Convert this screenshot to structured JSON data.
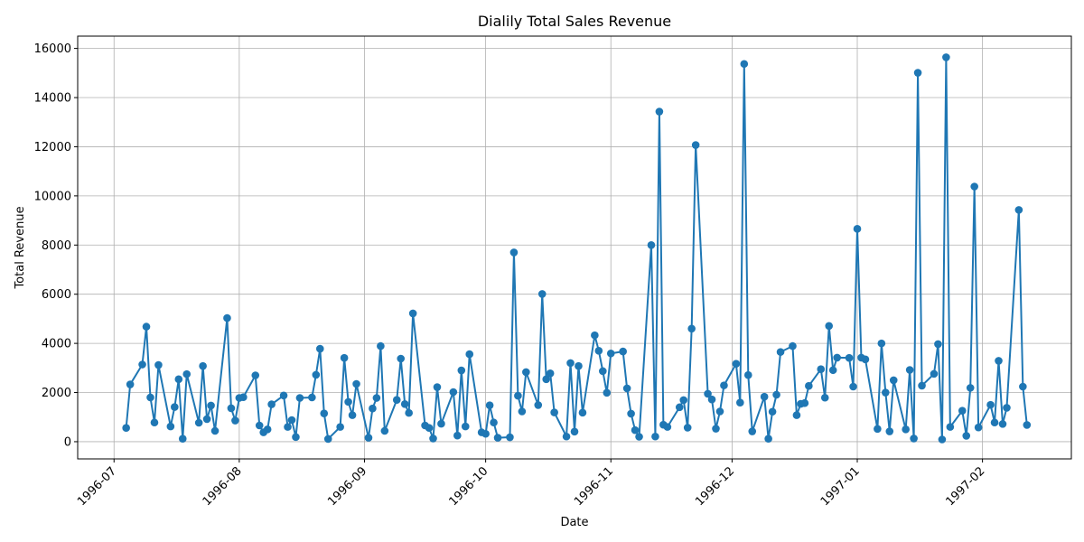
{
  "chart_data": {
    "type": "line",
    "title": "Dialily Total Sales Revenue",
    "xlabel": "Date",
    "ylabel": "Total Revenue",
    "grid": true,
    "marker": "circle",
    "line_color": "#1f77b4",
    "x_ticks": [
      "1996-07",
      "1996-08",
      "1996-09",
      "1996-10",
      "1996-11",
      "1996-12",
      "1997-01",
      "1997-02"
    ],
    "y_ticks": [
      0,
      2000,
      4000,
      6000,
      8000,
      10000,
      12000,
      14000,
      16000
    ],
    "xlim": [
      "1996-06-22",
      "1997-02-23"
    ],
    "ylim": [
      -700,
      16500
    ],
    "series": [
      {
        "x": [
          "1996-07-04",
          "1996-07-05",
          "1996-07-08",
          "1996-07-09",
          "1996-07-10",
          "1996-07-11",
          "1996-07-12",
          "1996-07-15",
          "1996-07-16",
          "1996-07-17",
          "1996-07-18",
          "1996-07-19",
          "1996-07-22",
          "1996-07-23",
          "1996-07-24",
          "1996-07-25",
          "1996-07-26",
          "1996-07-29",
          "1996-07-30",
          "1996-07-31",
          "1996-08-01",
          "1996-08-02",
          "1996-08-05",
          "1996-08-06",
          "1996-08-07",
          "1996-08-08",
          "1996-08-09",
          "1996-08-12",
          "1996-08-13",
          "1996-08-14",
          "1996-08-15",
          "1996-08-16",
          "1996-08-19",
          "1996-08-20",
          "1996-08-21",
          "1996-08-22",
          "1996-08-23",
          "1996-08-26",
          "1996-08-27",
          "1996-08-28",
          "1996-08-29",
          "1996-08-30",
          "1996-09-02",
          "1996-09-03",
          "1996-09-04",
          "1996-09-05",
          "1996-09-06",
          "1996-09-09",
          "1996-09-10",
          "1996-09-11",
          "1996-09-12",
          "1996-09-13",
          "1996-09-16",
          "1996-09-17",
          "1996-09-18",
          "1996-09-19",
          "1996-09-20",
          "1996-09-23",
          "1996-09-24",
          "1996-09-25",
          "1996-09-26",
          "1996-09-27",
          "1996-09-30",
          "1996-10-01",
          "1996-10-02",
          "1996-10-03",
          "1996-10-04",
          "1996-10-07",
          "1996-10-08",
          "1996-10-09",
          "1996-10-10",
          "1996-10-11",
          "1996-10-14",
          "1996-10-15",
          "1996-10-16",
          "1996-10-17",
          "1996-10-18",
          "1996-10-21",
          "1996-10-22",
          "1996-10-23",
          "1996-10-24",
          "1996-10-25",
          "1996-10-28",
          "1996-10-29",
          "1996-10-30",
          "1996-10-31",
          "1996-11-01",
          "1996-11-04",
          "1996-11-05",
          "1996-11-06",
          "1996-11-07",
          "1996-11-08",
          "1996-11-11",
          "1996-11-12",
          "1996-11-13",
          "1996-11-14",
          "1996-11-15",
          "1996-11-18",
          "1996-11-19",
          "1996-11-20",
          "1996-11-21",
          "1996-11-22",
          "1996-11-25",
          "1996-11-26",
          "1996-11-27",
          "1996-11-28",
          "1996-11-29",
          "1996-12-02",
          "1996-12-03",
          "1996-12-04",
          "1996-12-05",
          "1996-12-06",
          "1996-12-09",
          "1996-12-10",
          "1996-12-11",
          "1996-12-12",
          "1996-12-13",
          "1996-12-16",
          "1996-12-17",
          "1996-12-18",
          "1996-12-19",
          "1996-12-20",
          "1996-12-23",
          "1996-12-24",
          "1996-12-25",
          "1996-12-26",
          "1996-12-27",
          "1996-12-30",
          "1996-12-31",
          "1997-01-01",
          "1997-01-02",
          "1997-01-03",
          "1997-01-06",
          "1997-01-07",
          "1997-01-08",
          "1997-01-09",
          "1997-01-10",
          "1997-01-13",
          "1997-01-14",
          "1997-01-15",
          "1997-01-16",
          "1997-01-17",
          "1997-01-20",
          "1997-01-21",
          "1997-01-22",
          "1997-01-23",
          "1997-01-24",
          "1997-01-27",
          "1997-01-28",
          "1997-01-29",
          "1997-01-30",
          "1997-01-31",
          "1997-02-03",
          "1997-02-04",
          "1997-02-05",
          "1997-02-06",
          "1997-02-07",
          "1997-02-10",
          "1997-02-11",
          "1997-02-12"
        ],
        "y": [
          560,
          2330,
          3140,
          4680,
          1800,
          780,
          3120,
          620,
          1410,
          2540,
          120,
          2750,
          770,
          3080,
          920,
          1470,
          440,
          5030,
          1360,
          860,
          1780,
          1810,
          2700,
          660,
          380,
          500,
          1520,
          1880,
          600,
          880,
          190,
          1780,
          1800,
          2720,
          3780,
          1150,
          110,
          600,
          3410,
          1620,
          1080,
          2350,
          160,
          1350,
          1780,
          3890,
          440,
          1700,
          3380,
          1530,
          1170,
          5220,
          660,
          560,
          130,
          2220,
          730,
          2020,
          250,
          2900,
          620,
          3560,
          380,
          320,
          1480,
          780,
          160,
          180,
          7700,
          1870,
          1230,
          2830,
          1490,
          6010,
          2540,
          2780,
          1190,
          210,
          3200,
          410,
          3080,
          1180,
          4330,
          3700,
          2870,
          1990,
          3590,
          3670,
          2170,
          1140,
          470,
          200,
          8000,
          210,
          13430,
          690,
          600,
          1400,
          1690,
          570,
          4600,
          12070,
          1950,
          1720,
          530,
          1230,
          2290,
          3170,
          1590,
          15370,
          2710,
          420,
          1830,
          120,
          1220,
          1910,
          3650,
          3890,
          1080,
          1540,
          1570,
          2270,
          2950,
          1790,
          4710,
          2910,
          3420,
          3410,
          2240,
          8660,
          3420,
          3350,
          520,
          4000,
          2000,
          420,
          2500,
          500,
          2920,
          130,
          15010,
          2280,
          2760,
          3970,
          90,
          15640,
          600,
          1260,
          240,
          2190,
          10380,
          580,
          1500,
          780,
          3290,
          720,
          1380,
          9430,
          2240,
          680
        ]
      }
    ]
  }
}
